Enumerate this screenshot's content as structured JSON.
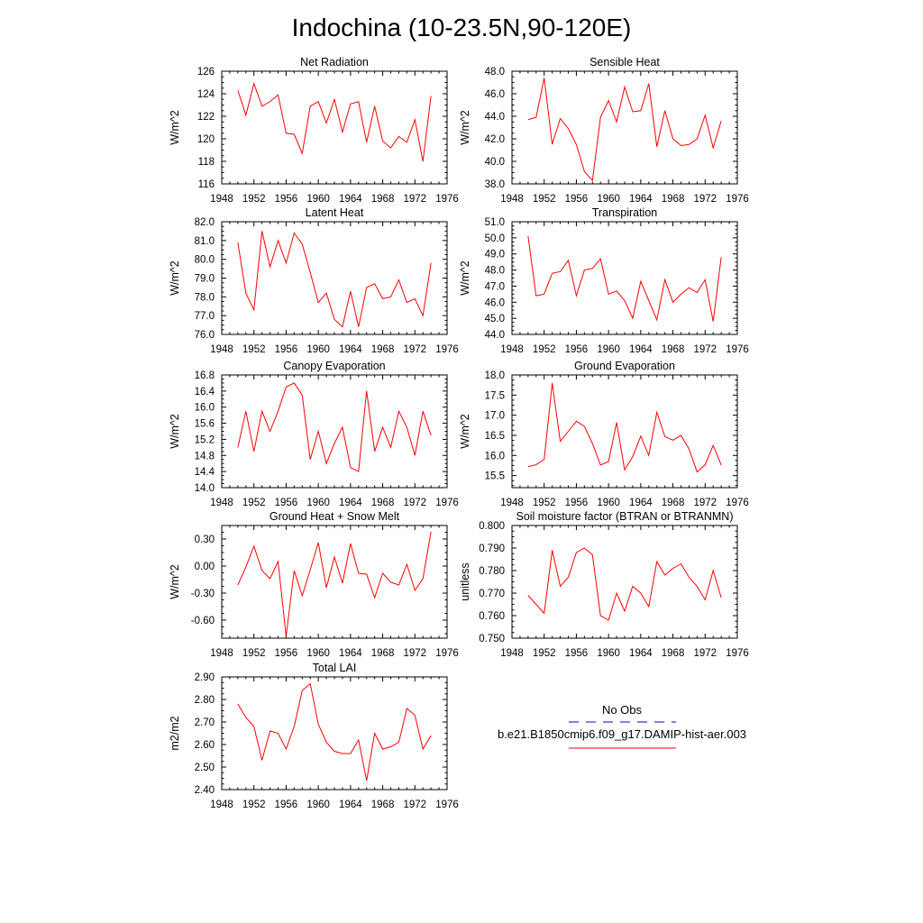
{
  "title": "Indochina (10-23.5N,90-120E)",
  "colors": {
    "model": "#ff0000",
    "obs": "#0000cc",
    "axis": "#000000"
  },
  "legend": {
    "obs_label": "No Obs",
    "model_label": "b.e21.B1850cmip6.f09_g17.DAMIP-hist-aer.003"
  },
  "chart_data": [
    {
      "type": "line",
      "title": "Net Radiation",
      "ylabel": "W/m^2",
      "xlim": [
        1948,
        1976
      ],
      "xticks": [
        1948,
        1952,
        1956,
        1960,
        1964,
        1968,
        1972,
        1976
      ],
      "ylim": [
        116,
        126
      ],
      "yticks": [
        116,
        118,
        120,
        122,
        124,
        126
      ],
      "ytick_labels": [
        "116",
        "118",
        "120",
        "122",
        "124",
        "126"
      ],
      "series": [
        {
          "x": [
            1950,
            1951,
            1952,
            1953,
            1954,
            1955,
            1956,
            1957,
            1958,
            1959,
            1960,
            1961,
            1962,
            1963,
            1964,
            1965,
            1966,
            1967,
            1968,
            1969,
            1970,
            1971,
            1972,
            1973,
            1974
          ],
          "y": [
            124.3,
            122.1,
            124.9,
            122.9,
            123.3,
            123.9,
            120.5,
            120.4,
            118.7,
            122.9,
            123.3,
            121.4,
            123.5,
            120.6,
            123.1,
            123.3,
            119.7,
            122.9,
            119.8,
            119.2,
            120.2,
            119.7,
            121.7,
            118.0,
            123.8
          ]
        }
      ]
    },
    {
      "type": "line",
      "title": "Sensible Heat",
      "ylabel": "W/m^2",
      "xlim": [
        1948,
        1976
      ],
      "xticks": [
        1948,
        1952,
        1956,
        1960,
        1964,
        1968,
        1972,
        1976
      ],
      "ylim": [
        38,
        48
      ],
      "yticks": [
        38,
        40,
        42,
        44,
        46,
        48
      ],
      "ytick_labels": [
        "38.0",
        "40.0",
        "42.0",
        "44.0",
        "46.0",
        "48.0"
      ],
      "series": [
        {
          "x": [
            1950,
            1951,
            1952,
            1953,
            1954,
            1955,
            1956,
            1957,
            1958,
            1959,
            1960,
            1961,
            1962,
            1963,
            1964,
            1965,
            1966,
            1967,
            1968,
            1969,
            1970,
            1971,
            1972,
            1973,
            1974
          ],
          "y": [
            43.7,
            43.9,
            47.4,
            41.5,
            43.8,
            42.9,
            41.5,
            39.1,
            38.3,
            43.9,
            45.4,
            43.5,
            46.6,
            44.4,
            44.5,
            46.9,
            41.3,
            44.5,
            42.0,
            41.4,
            41.5,
            42.0,
            44.1,
            41.2,
            43.6
          ]
        }
      ]
    },
    {
      "type": "line",
      "title": "Latent Heat",
      "ylabel": "W/m^2",
      "xlim": [
        1948,
        1976
      ],
      "xticks": [
        1948,
        1952,
        1956,
        1960,
        1964,
        1968,
        1972,
        1976
      ],
      "ylim": [
        76,
        82
      ],
      "yticks": [
        76,
        77,
        78,
        79,
        80,
        81,
        82
      ],
      "ytick_labels": [
        "76.0",
        "77.0",
        "78.0",
        "79.0",
        "80.0",
        "81.0",
        "82.0"
      ],
      "series": [
        {
          "x": [
            1950,
            1951,
            1952,
            1953,
            1954,
            1955,
            1956,
            1957,
            1958,
            1959,
            1960,
            1961,
            1962,
            1963,
            1964,
            1965,
            1966,
            1967,
            1968,
            1969,
            1970,
            1971,
            1972,
            1973,
            1974
          ],
          "y": [
            80.9,
            78.2,
            77.3,
            81.5,
            79.6,
            81.0,
            79.8,
            81.4,
            80.8,
            79.3,
            77.7,
            78.2,
            76.8,
            76.4,
            78.3,
            76.4,
            78.5,
            78.7,
            77.9,
            78.0,
            78.9,
            77.7,
            77.9,
            77.0,
            79.8
          ]
        }
      ]
    },
    {
      "type": "line",
      "title": "Transpiration",
      "ylabel": "W/m^2",
      "xlim": [
        1948,
        1976
      ],
      "xticks": [
        1948,
        1952,
        1956,
        1960,
        1964,
        1968,
        1972,
        1976
      ],
      "ylim": [
        44,
        51
      ],
      "yticks": [
        44,
        45,
        46,
        47,
        48,
        49,
        50,
        51
      ],
      "ytick_labels": [
        "44.0",
        "45.0",
        "46.0",
        "47.0",
        "48.0",
        "49.0",
        "50.0",
        "51.0"
      ],
      "series": [
        {
          "x": [
            1950,
            1951,
            1952,
            1953,
            1954,
            1955,
            1956,
            1957,
            1958,
            1959,
            1960,
            1961,
            1962,
            1963,
            1964,
            1965,
            1966,
            1967,
            1968,
            1969,
            1970,
            1971,
            1972,
            1973,
            1974
          ],
          "y": [
            50.1,
            46.4,
            46.5,
            47.8,
            47.9,
            48.6,
            46.4,
            48.0,
            48.1,
            48.7,
            46.5,
            46.7,
            46.1,
            45.0,
            47.3,
            46.1,
            44.9,
            47.4,
            46.0,
            46.5,
            46.9,
            46.6,
            47.4,
            44.8,
            48.8
          ]
        }
      ]
    },
    {
      "type": "line",
      "title": "Canopy Evaporation",
      "ylabel": "W/m^2",
      "xlim": [
        1948,
        1976
      ],
      "xticks": [
        1948,
        1952,
        1956,
        1960,
        1964,
        1968,
        1972,
        1976
      ],
      "ylim": [
        14.0,
        16.8
      ],
      "yticks": [
        14.0,
        14.4,
        14.8,
        15.2,
        15.6,
        16.0,
        16.4,
        16.8
      ],
      "ytick_labels": [
        "14.0",
        "14.4",
        "14.8",
        "15.2",
        "15.6",
        "16.0",
        "16.4",
        "16.8"
      ],
      "series": [
        {
          "x": [
            1950,
            1951,
            1952,
            1953,
            1954,
            1955,
            1956,
            1957,
            1958,
            1959,
            1960,
            1961,
            1962,
            1963,
            1964,
            1965,
            1966,
            1967,
            1968,
            1969,
            1970,
            1971,
            1972,
            1973,
            1974
          ],
          "y": [
            15.0,
            15.9,
            14.9,
            15.9,
            15.4,
            15.9,
            16.5,
            16.6,
            16.3,
            14.7,
            15.4,
            14.6,
            15.1,
            15.5,
            14.5,
            14.4,
            16.4,
            14.9,
            15.5,
            15.0,
            15.9,
            15.5,
            14.8,
            15.9,
            15.3
          ]
        }
      ]
    },
    {
      "type": "line",
      "title": "Ground Evaporation",
      "ylabel": "W/m^2",
      "xlim": [
        1948,
        1976
      ],
      "xticks": [
        1948,
        1952,
        1956,
        1960,
        1964,
        1968,
        1972,
        1976
      ],
      "ylim": [
        15.2,
        18.0
      ],
      "yticks": [
        15.5,
        16.0,
        16.5,
        17.0,
        17.5,
        18.0
      ],
      "ytick_labels": [
        "15.5",
        "16.0",
        "16.5",
        "17.0",
        "17.5",
        "18.0"
      ],
      "series": [
        {
          "x": [
            1950,
            1951,
            1952,
            1953,
            1954,
            1955,
            1956,
            1957,
            1958,
            1959,
            1960,
            1961,
            1962,
            1963,
            1964,
            1965,
            1966,
            1967,
            1968,
            1969,
            1970,
            1971,
            1972,
            1973,
            1974
          ],
          "y": [
            15.72,
            15.77,
            15.9,
            17.8,
            16.35,
            16.6,
            16.85,
            16.72,
            16.3,
            15.76,
            15.85,
            16.82,
            15.64,
            15.97,
            16.48,
            16.0,
            17.07,
            16.47,
            16.38,
            16.5,
            16.16,
            15.59,
            15.77,
            16.25,
            15.76
          ]
        }
      ]
    },
    {
      "type": "line",
      "title": "Ground Heat + Snow Melt",
      "ylabel": "W/m^2",
      "xlim": [
        1948,
        1976
      ],
      "xticks": [
        1948,
        1952,
        1956,
        1960,
        1964,
        1968,
        1972,
        1976
      ],
      "ylim": [
        -0.8,
        0.45
      ],
      "yticks": [
        -0.6,
        -0.3,
        0.0,
        0.3
      ],
      "ytick_labels": [
        "-0.60",
        "-0.30",
        "0.00",
        "0.30"
      ],
      "series": [
        {
          "x": [
            1950,
            1951,
            1952,
            1953,
            1954,
            1955,
            1956,
            1957,
            1958,
            1959,
            1960,
            1961,
            1962,
            1963,
            1964,
            1965,
            1966,
            1967,
            1968,
            1969,
            1970,
            1971,
            1972,
            1973,
            1974
          ],
          "y": [
            -0.21,
            -0.01,
            0.22,
            -0.05,
            -0.14,
            0.05,
            -0.78,
            -0.05,
            -0.33,
            -0.04,
            0.26,
            -0.24,
            0.1,
            -0.19,
            0.25,
            -0.08,
            -0.09,
            -0.35,
            -0.08,
            -0.18,
            -0.21,
            0.02,
            -0.27,
            -0.14,
            0.38
          ]
        }
      ]
    },
    {
      "type": "line",
      "title": "Soil moisture factor (BTRAN or BTRANMN)",
      "ylabel": "unitless",
      "xlim": [
        1948,
        1976
      ],
      "xticks": [
        1948,
        1952,
        1956,
        1960,
        1964,
        1968,
        1972,
        1976
      ],
      "ylim": [
        0.75,
        0.8
      ],
      "yticks": [
        0.75,
        0.76,
        0.77,
        0.78,
        0.79,
        0.8
      ],
      "ytick_labels": [
        "0.750",
        "0.760",
        "0.770",
        "0.780",
        "0.790",
        "0.800"
      ],
      "series": [
        {
          "x": [
            1950,
            1951,
            1952,
            1953,
            1954,
            1955,
            1956,
            1957,
            1958,
            1959,
            1960,
            1961,
            1962,
            1963,
            1964,
            1965,
            1966,
            1967,
            1968,
            1969,
            1970,
            1971,
            1972,
            1973,
            1974
          ],
          "y": [
            0.769,
            0.765,
            0.761,
            0.789,
            0.773,
            0.777,
            0.788,
            0.79,
            0.787,
            0.76,
            0.758,
            0.77,
            0.762,
            0.773,
            0.77,
            0.764,
            0.784,
            0.778,
            0.781,
            0.783,
            0.777,
            0.773,
            0.767,
            0.78,
            0.768
          ]
        }
      ]
    },
    {
      "type": "line",
      "title": "Total LAI",
      "ylabel": "m2/m2",
      "xlim": [
        1948,
        1976
      ],
      "xticks": [
        1948,
        1952,
        1956,
        1960,
        1964,
        1968,
        1972,
        1976
      ],
      "ylim": [
        2.4,
        2.9
      ],
      "yticks": [
        2.4,
        2.5,
        2.6,
        2.7,
        2.8,
        2.9
      ],
      "ytick_labels": [
        "2.40",
        "2.50",
        "2.60",
        "2.70",
        "2.80",
        "2.90"
      ],
      "series": [
        {
          "x": [
            1950,
            1951,
            1952,
            1953,
            1954,
            1955,
            1956,
            1957,
            1958,
            1959,
            1960,
            1961,
            1962,
            1963,
            1964,
            1965,
            1966,
            1967,
            1968,
            1969,
            1970,
            1971,
            1972,
            1973,
            1974
          ],
          "y": [
            2.78,
            2.72,
            2.68,
            2.53,
            2.66,
            2.65,
            2.58,
            2.68,
            2.84,
            2.87,
            2.69,
            2.61,
            2.57,
            2.56,
            2.56,
            2.62,
            2.44,
            2.65,
            2.58,
            2.59,
            2.61,
            2.76,
            2.73,
            2.58,
            2.64
          ]
        }
      ]
    }
  ]
}
